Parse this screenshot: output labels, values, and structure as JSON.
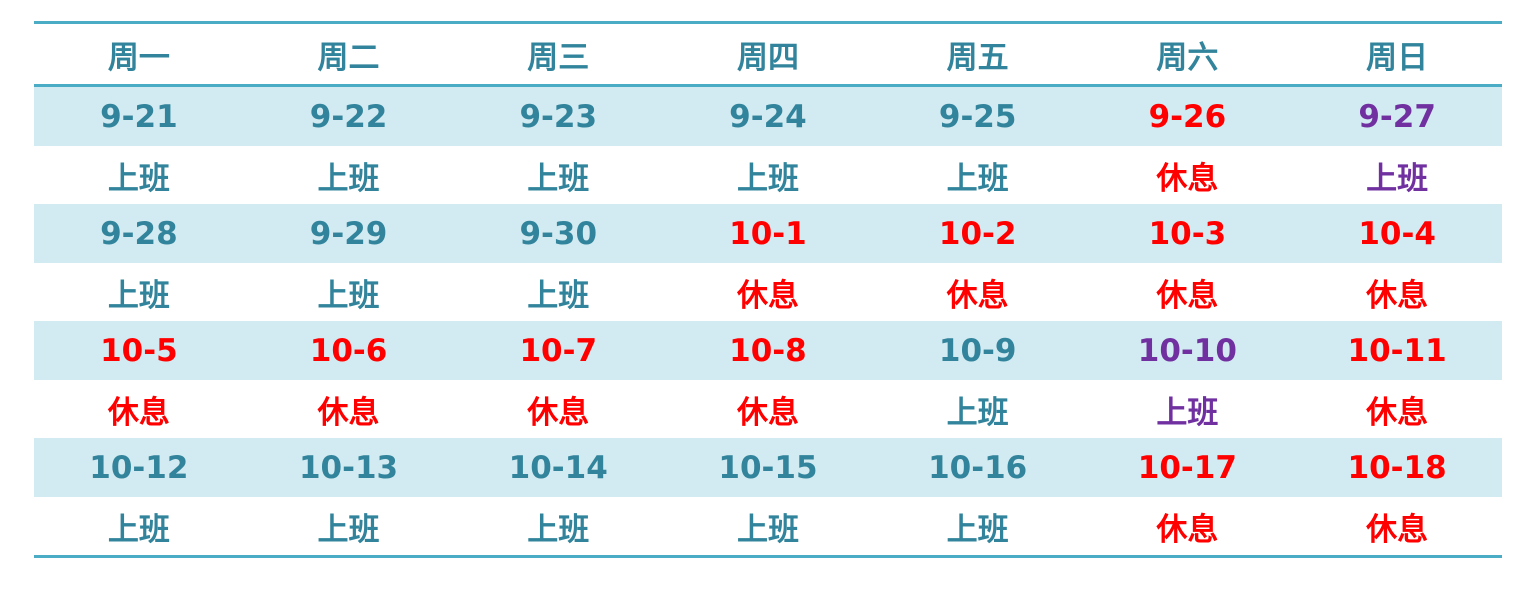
{
  "colors": {
    "normal": "#31849b",
    "holiday": "#ff0000",
    "adjusted_workday": "#7030a0",
    "rule": "#4bacc6",
    "band": "#d2eaf1"
  },
  "header": [
    "周一",
    "周二",
    "周三",
    "周四",
    "周五",
    "周六",
    "周日"
  ],
  "weeks": [
    {
      "days": [
        {
          "date": "9-21",
          "status": "上班",
          "kind": "normal"
        },
        {
          "date": "9-22",
          "status": "上班",
          "kind": "normal"
        },
        {
          "date": "9-23",
          "status": "上班",
          "kind": "normal"
        },
        {
          "date": "9-24",
          "status": "上班",
          "kind": "normal"
        },
        {
          "date": "9-25",
          "status": "上班",
          "kind": "normal"
        },
        {
          "date": "9-26",
          "status": "休息",
          "kind": "holiday"
        },
        {
          "date": "9-27",
          "status": "上班",
          "kind": "adjusted_workday"
        }
      ]
    },
    {
      "days": [
        {
          "date": "9-28",
          "status": "上班",
          "kind": "normal"
        },
        {
          "date": "9-29",
          "status": "上班",
          "kind": "normal"
        },
        {
          "date": "9-30",
          "status": "上班",
          "kind": "normal"
        },
        {
          "date": "10-1",
          "status": "休息",
          "kind": "holiday"
        },
        {
          "date": "10-2",
          "status": "休息",
          "kind": "holiday"
        },
        {
          "date": "10-3",
          "status": "休息",
          "kind": "holiday"
        },
        {
          "date": "10-4",
          "status": "休息",
          "kind": "holiday"
        }
      ]
    },
    {
      "days": [
        {
          "date": "10-5",
          "status": "休息",
          "kind": "holiday"
        },
        {
          "date": "10-6",
          "status": "休息",
          "kind": "holiday"
        },
        {
          "date": "10-7",
          "status": "休息",
          "kind": "holiday"
        },
        {
          "date": "10-8",
          "status": "休息",
          "kind": "holiday"
        },
        {
          "date": "10-9",
          "status": "上班",
          "kind": "normal"
        },
        {
          "date": "10-10",
          "status": "上班",
          "kind": "adjusted_workday"
        },
        {
          "date": "10-11",
          "status": "休息",
          "kind": "holiday"
        }
      ]
    },
    {
      "days": [
        {
          "date": "10-12",
          "status": "上班",
          "kind": "normal"
        },
        {
          "date": "10-13",
          "status": "上班",
          "kind": "normal"
        },
        {
          "date": "10-14",
          "status": "上班",
          "kind": "normal"
        },
        {
          "date": "10-15",
          "status": "上班",
          "kind": "normal"
        },
        {
          "date": "10-16",
          "status": "上班",
          "kind": "normal"
        },
        {
          "date": "10-17",
          "status": "休息",
          "kind": "holiday"
        },
        {
          "date": "10-18",
          "status": "休息",
          "kind": "holiday"
        }
      ]
    }
  ]
}
